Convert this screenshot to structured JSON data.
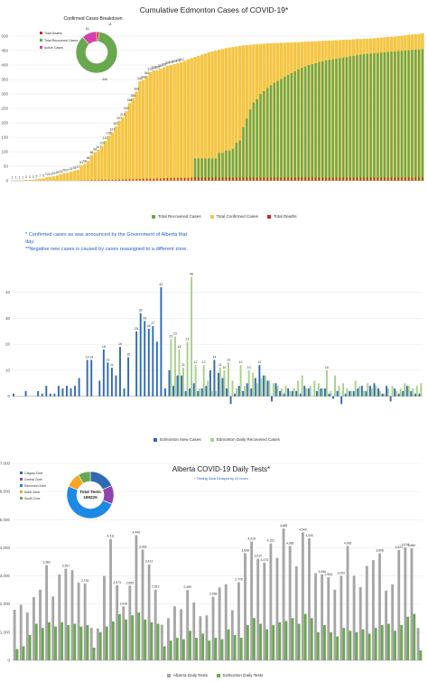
{
  "chart_data": [
    {
      "type": "bar",
      "title": "Cumulative Edmonton Cases of  COVID-19*",
      "ylim": [
        0,
        500
      ],
      "yticks": [
        0,
        50,
        100,
        150,
        200,
        250,
        300,
        350,
        400,
        450,
        500
      ],
      "series": [
        {
          "name": "Total Recovered Cases",
          "color": "#6aa84f",
          "values": [
            0,
            0,
            0,
            0,
            0,
            0,
            0,
            0,
            0,
            0,
            0,
            0,
            0,
            0,
            0,
            0,
            0,
            0,
            0,
            0,
            0,
            0,
            0,
            0,
            0,
            0,
            0,
            0,
            0,
            0,
            0,
            0,
            0,
            0,
            0,
            0,
            0,
            0,
            0,
            0,
            0,
            0,
            0,
            0,
            0,
            0,
            0,
            0,
            0,
            0,
            0,
            0,
            0,
            77,
            77,
            77,
            77,
            77,
            77,
            77,
            96,
            96,
            104,
            104,
            110,
            131,
            139,
            185,
            215,
            246,
            270,
            282,
            300,
            310,
            320,
            330,
            338,
            345,
            352,
            360,
            366,
            372,
            378,
            385,
            390,
            395,
            400,
            403,
            406,
            410,
            413,
            416,
            418,
            420,
            422,
            424,
            426,
            428,
            430,
            432,
            434,
            436,
            438,
            439,
            440,
            441,
            442,
            443,
            444,
            445,
            446,
            447,
            448,
            449,
            450,
            451,
            452,
            453,
            454,
            455
          ]
        },
        {
          "name": "Total Confirmed Cases",
          "color": "#f5c542",
          "values": [
            1,
            1,
            1,
            1,
            3,
            3,
            3,
            5,
            7,
            8,
            12,
            13,
            15,
            18,
            22,
            26,
            27,
            31,
            35,
            37,
            53,
            58,
            68,
            88,
            98,
            107,
            120,
            137,
            155,
            167,
            187,
            207,
            219,
            240,
            268,
            285,
            308,
            344,
            348,
            362,
            375,
            381,
            383,
            387,
            392,
            397,
            400,
            403,
            406,
            410,
            415,
            420,
            424,
            428,
            432,
            436,
            440,
            444,
            447,
            450,
            453,
            455,
            458,
            461,
            462,
            464,
            466,
            468,
            469,
            470,
            471,
            472,
            473,
            474,
            475,
            475,
            476,
            476,
            477,
            477,
            478,
            478,
            479,
            479,
            480,
            481,
            481,
            482,
            482,
            483,
            484,
            484,
            485,
            485,
            486,
            486,
            487,
            488,
            488,
            489,
            490,
            490,
            491,
            491,
            492,
            493,
            494,
            495,
            496,
            497,
            498,
            499,
            500,
            501,
            503,
            505,
            506,
            507,
            508,
            509
          ]
        },
        {
          "name": "Total Deaths",
          "color": "#c62828",
          "values": [
            0,
            0,
            0,
            0,
            0,
            0,
            0,
            0,
            0,
            0,
            0,
            0,
            0,
            0,
            0,
            0,
            0,
            0,
            0,
            0,
            1,
            1,
            1,
            2,
            2,
            2,
            3,
            3,
            3,
            3,
            4,
            4,
            4,
            5,
            5,
            5,
            6,
            6,
            7,
            7,
            7,
            7,
            8,
            8,
            9,
            9,
            9,
            10,
            10,
            10,
            10,
            10,
            11,
            11,
            11,
            11,
            11,
            11,
            11,
            11,
            11,
            11,
            11,
            11,
            11,
            11,
            11,
            11,
            11,
            11,
            11,
            11,
            11,
            11,
            11,
            11,
            11,
            11,
            11,
            11,
            11,
            11,
            11,
            11,
            11,
            11,
            11,
            11,
            11,
            11,
            11,
            11,
            11,
            11,
            11,
            11,
            11,
            11,
            11,
            11,
            11,
            11,
            11,
            11,
            11,
            11,
            11,
            11,
            11,
            11,
            11,
            11,
            11,
            11,
            11,
            11,
            11,
            11,
            11,
            11
          ]
        }
      ],
      "data_labels_shown": [
        1,
        1,
        1,
        1,
        3,
        3,
        3,
        5,
        7,
        8,
        12,
        13,
        15,
        18,
        22,
        26,
        27,
        31,
        35,
        37,
        53,
        58,
        68,
        88,
        98,
        107,
        120,
        137,
        155,
        167,
        187,
        207,
        219,
        240,
        268,
        285,
        308,
        344,
        348,
        362,
        375,
        381,
        383,
        387,
        392,
        397,
        400,
        403,
        406,
        410
      ],
      "legend": [
        "Total Recovered Cases",
        "Total Confirmed Cases",
        "Total Deaths"
      ],
      "legend_position": "bottom",
      "inset": {
        "type": "pie",
        "title": "Confirmed Cases Breakdown",
        "slices": [
          {
            "name": "Total Deaths",
            "value": 11,
            "color": "#c62828"
          },
          {
            "name": "Total Recovered Cases",
            "value": 444,
            "color": "#6aa84f"
          },
          {
            "name": "Active Cases",
            "value": 61,
            "color": "#d63fae"
          }
        ]
      }
    },
    {
      "type": "bar",
      "title": "",
      "ylim": [
        -5,
        50
      ],
      "yticks": [
        0,
        10,
        20,
        30,
        40
      ],
      "notes": [
        "* Confirmed cases as was announced by the Government of Alberta that day.",
        "**Negative new cases is caused by cases reassigned to a different zone."
      ],
      "series": [
        {
          "name": "Edmonton New Cases",
          "color": "#2f6ab3",
          "values": [
            1,
            0,
            0,
            2,
            0,
            0,
            2,
            1,
            4,
            1,
            1,
            4,
            3,
            4,
            3,
            4,
            7,
            0,
            14,
            14,
            0,
            6,
            18,
            13,
            11,
            8,
            19,
            3,
            15,
            0,
            25,
            32,
            29,
            26,
            27,
            21,
            42,
            3,
            10,
            4,
            8,
            8,
            2,
            3,
            5,
            2,
            3,
            4,
            10,
            14,
            9,
            7,
            3,
            -3,
            1,
            4,
            2,
            5,
            3,
            7,
            12,
            8,
            6,
            -2,
            5,
            2,
            1,
            3,
            2,
            2,
            1,
            4,
            3,
            0,
            2,
            3,
            3,
            1,
            -1,
            2,
            -3,
            1,
            2,
            2,
            3,
            4,
            2,
            4,
            5,
            3,
            1,
            4,
            -2,
            3,
            1,
            2,
            4,
            2,
            1,
            1
          ]
        },
        {
          "name": "Edmonton Daily Recovered Cases",
          "color": "#a8d08d",
          "values": [
            0,
            0,
            0,
            0,
            0,
            0,
            0,
            0,
            0,
            0,
            0,
            0,
            0,
            0,
            0,
            0,
            0,
            0,
            0,
            0,
            0,
            0,
            0,
            0,
            0,
            0,
            0,
            0,
            0,
            0,
            0,
            0,
            0,
            0,
            0,
            0,
            0,
            0,
            22,
            23,
            18,
            11,
            21,
            46,
            12,
            3,
            12,
            6,
            2,
            2,
            11,
            10,
            13,
            6,
            3,
            12,
            4,
            10,
            9,
            5,
            7,
            8,
            6,
            5,
            4,
            3,
            4,
            2,
            3,
            6,
            8,
            3,
            4,
            6,
            5,
            3,
            10,
            2,
            8,
            4,
            5,
            3,
            2,
            6,
            4,
            2,
            5,
            3,
            4,
            2,
            1,
            3,
            4,
            2,
            3,
            5,
            4,
            3,
            4,
            5
          ]
        }
      ],
      "data_labels_shown": {
        "new": [
          42,
          32,
          29,
          27,
          26,
          25,
          18,
          19,
          14,
          14,
          15,
          13,
          11,
          12
        ],
        "recovered": [
          46,
          23,
          22,
          21,
          18,
          12,
          13,
          12,
          11,
          10
        ]
      },
      "legend": [
        "Edmonton New Cases",
        "Edmonton Daily Recovered Cases"
      ],
      "legend_position": "bottom"
    },
    {
      "type": "bar",
      "title": "Alberta COVID-19 Daily Tests*",
      "subtitle": "* Testing Data Delayed by 24 hours",
      "ylim": [
        0,
        7000
      ],
      "yticks": [
        0,
        1000,
        2000,
        3000,
        4000,
        5000,
        6000,
        7000
      ],
      "series": [
        {
          "name": "Alberta Daily Tests",
          "color": "#a6a6a6",
          "values": [
            1800,
            1980,
            1700,
            2250,
            2510,
            3382,
            2270,
            3053,
            3257,
            3200,
            2760,
            2732,
            1152,
            1130,
            3000,
            4311,
            2673,
            1916,
            2655,
            4449,
            3933,
            3412,
            2513,
            1268,
            1500,
            1918,
            1818,
            2499,
            2059,
            1568,
            1600,
            2258,
            2590,
            2706,
            1780,
            2778,
            3808,
            4218,
            3610,
            3473,
            4151,
            3643,
            4685,
            4066,
            3343,
            4549,
            4340,
            3098,
            3056,
            2954,
            2514,
            3002,
            4066,
            3009,
            2600,
            3356,
            3560,
            3808,
            2478,
            2700,
            3921,
            4016,
            3980,
            1150
          ]
        },
        {
          "name": "Edmonton Daily Tests",
          "color": "#6aa84f",
          "values": [
            400,
            500,
            900,
            1300,
            1150,
            1350,
            1200,
            1350,
            1250,
            1300,
            1200,
            1250,
            450,
            1000,
            1200,
            1380,
            1640,
            1450,
            1600,
            1700,
            1450,
            1350,
            1300,
            500,
            700,
            800,
            750,
            1050,
            800,
            950,
            700,
            800,
            750,
            1100,
            900,
            800,
            1250,
            1500,
            1300,
            1100,
            1250,
            1350,
            1400,
            1500,
            1300,
            1650,
            1500,
            1000,
            1250,
            1000,
            850,
            1150,
            1050,
            1000,
            1100,
            950,
            1150,
            1250,
            1300,
            1050,
            1250,
            1550,
            1650,
            350
          ]
        }
      ],
      "data_labels_shown": [
        3382,
        3257,
        2732,
        4311,
        2673,
        1916,
        2655,
        4449,
        3933,
        3412,
        2513,
        2499,
        2258,
        2778,
        4218,
        3610,
        3473,
        4151,
        4685,
        4066,
        4549,
        4340,
        3056,
        2954,
        3002,
        3808,
        3921,
        4016,
        3980
      ],
      "legend": [
        "Alberta Daily Tests",
        "Edmonton Daily Tests"
      ],
      "legend_position": "bottom",
      "inset": {
        "type": "pie",
        "center_label": "Total Tests",
        "center_value": "189225",
        "slices": [
          {
            "name": "Calgary Zone",
            "value": 34800,
            "color": "#2f6ab3"
          },
          {
            "name": "Central Zone",
            "value": 24500,
            "color": "#8e44ad"
          },
          {
            "name": "Edmonton Zone",
            "value": 94200,
            "color": "#1e88e5"
          },
          {
            "name": "North Zone",
            "value": 19600,
            "color": "#f5a623"
          },
          {
            "name": "South Zone",
            "value": 16125,
            "color": "#6aa84f"
          }
        ],
        "legend": [
          "Calgary Zone",
          "Central Zone",
          "Edmonton Zone",
          "North Zone",
          "South Zone"
        ]
      }
    }
  ]
}
